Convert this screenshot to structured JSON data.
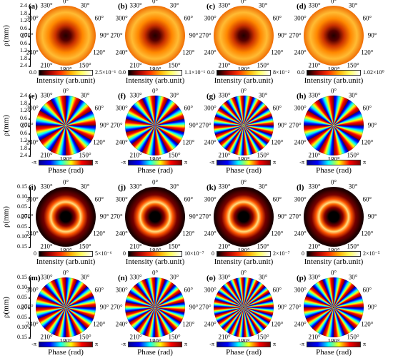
{
  "y_axis_label": "ρ(mm)",
  "rows": [
    {
      "yticks": [
        "2.4",
        "1.8",
        "1.2",
        "0.6",
        "0.0",
        "0.6",
        "1.2",
        "1.8",
        "2.4"
      ]
    },
    {
      "yticks": [
        "2.4",
        "1.8",
        "1.2",
        "0.6",
        "0.0",
        "0.6",
        "1.2",
        "1.8",
        "2.4"
      ]
    },
    {
      "yticks": [
        "0.15",
        "0.10",
        "0.05",
        "0.00",
        "0.05",
        "0.10",
        "0.15"
      ]
    },
    {
      "yticks": [
        "0.15",
        "0.10",
        "0.05",
        "0.00",
        "0.05",
        "0.10",
        "0.15"
      ]
    }
  ],
  "angle_labels": [
    "0°",
    "30°",
    "60°",
    "90°",
    "120°",
    "150°",
    "180°",
    "210°",
    "240°",
    "270°",
    "300°",
    "330°"
  ],
  "panels": [
    {
      "label": "(a)",
      "colorbar_title": "Intensity (arb.unit)",
      "colorbar_ticks": [
        "0.0",
        "2.5×10⁻¹"
      ]
    },
    {
      "label": "(b)",
      "colorbar_title": "Intensity (arb.unit)",
      "colorbar_ticks": [
        "0.0",
        "1.1×10⁻¹"
      ]
    },
    {
      "label": "(c)",
      "colorbar_title": "Intensity (arb.unit)",
      "colorbar_ticks": [
        "0.0",
        "8×10⁻²"
      ]
    },
    {
      "label": "(d)",
      "colorbar_title": "Intensity (arb.unit)",
      "colorbar_ticks": [
        "0.0",
        "1.02×10⁰"
      ]
    },
    {
      "label": "(e)",
      "colorbar_title": "Phase (rad)",
      "colorbar_ticks": [
        "-π",
        "π"
      ]
    },
    {
      "label": "(f)",
      "colorbar_title": "Phase (rad)",
      "colorbar_ticks": [
        "-π",
        "π"
      ]
    },
    {
      "label": "(g)",
      "colorbar_title": "Phase (rad)",
      "colorbar_ticks": [
        "-π",
        "π"
      ]
    },
    {
      "label": "(h)",
      "colorbar_title": "Phase (rad)",
      "colorbar_ticks": [
        "-π",
        "π"
      ]
    },
    {
      "label": "(i)",
      "colorbar_title": "Intensity (arb.unit)",
      "colorbar_ticks": [
        "0",
        "5×10⁻⁶"
      ]
    },
    {
      "label": "(j)",
      "colorbar_title": "Intensity (arb.unit)",
      "colorbar_ticks": [
        "0",
        "10×10⁻⁷"
      ]
    },
    {
      "label": "(k)",
      "colorbar_title": "Intensity (arb.unit)",
      "colorbar_ticks": [
        "0",
        "2×10⁻⁷"
      ]
    },
    {
      "label": "(l)",
      "colorbar_title": "Intensity (arb.unit)",
      "colorbar_ticks": [
        "0",
        "2×10⁻⁵"
      ]
    },
    {
      "label": "(m)",
      "colorbar_title": "Phase (rad)",
      "colorbar_ticks": [
        "-π",
        "π"
      ]
    },
    {
      "label": "(n)",
      "colorbar_title": "Phase (rad)",
      "colorbar_ticks": [
        "-π",
        "π"
      ]
    },
    {
      "label": "(o)",
      "colorbar_title": "Phase (rad)",
      "colorbar_ticks": [
        "-π",
        "π"
      ]
    },
    {
      "label": "(p)",
      "colorbar_title": "Phase (rad)",
      "colorbar_ticks": [
        "-π",
        "π"
      ]
    }
  ]
}
